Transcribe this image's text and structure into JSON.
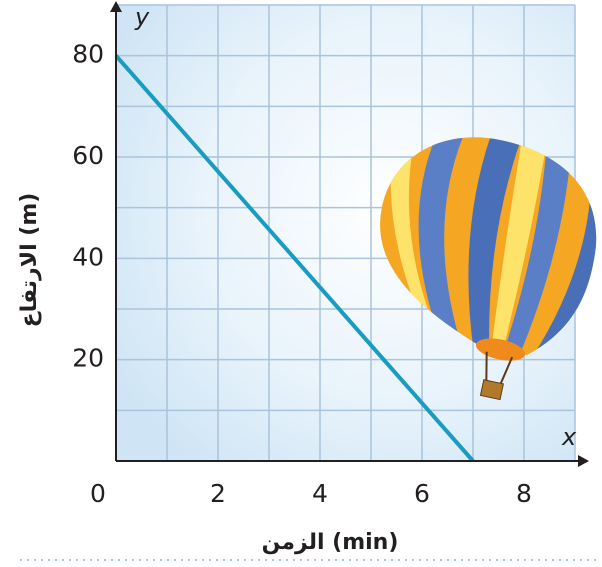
{
  "chart_data": {
    "type": "line",
    "x_label": "الزمن (min)",
    "y_label": "الارتفاع (m)",
    "x_axis_letter": "x",
    "y_axis_letter": "y",
    "x": [
      0,
      7
    ],
    "series": [
      {
        "color": "#1a9bc0",
        "values": [
          80,
          0
        ]
      }
    ],
    "xlim": [
      0,
      9
    ],
    "ylim": [
      0,
      90
    ],
    "xticks": [
      0,
      2,
      4,
      6,
      8
    ],
    "yticks": [
      20,
      40,
      60,
      80
    ],
    "grid": true,
    "grid_x": [
      1,
      2,
      3,
      4,
      5,
      6,
      7,
      8,
      9
    ],
    "grid_y": [
      10,
      20,
      30,
      40,
      50,
      60,
      70,
      80,
      90
    ]
  }
}
